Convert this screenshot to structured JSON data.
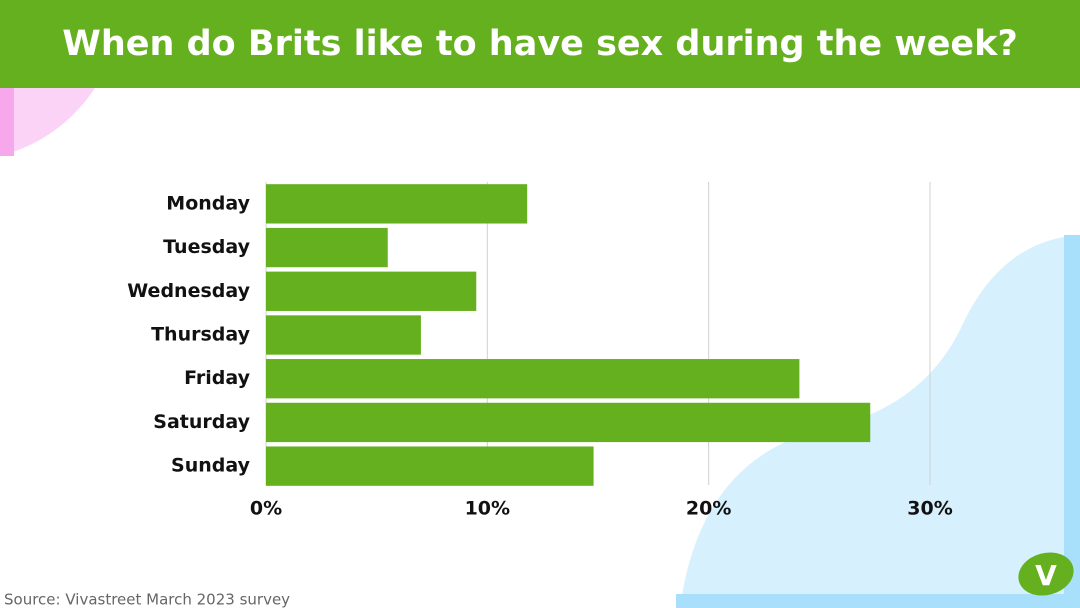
{
  "chart_data": {
    "type": "bar",
    "orientation": "horizontal",
    "title": "When do Brits like to have sex during the week?",
    "categories": [
      "Monday",
      "Tuesday",
      "Wednesday",
      "Thursday",
      "Friday",
      "Saturday",
      "Sunday"
    ],
    "values": [
      11.8,
      5.5,
      9.5,
      7.0,
      24.1,
      27.3,
      14.8
    ],
    "color": "#65b01e",
    "xlim": [
      0,
      30
    ],
    "xticks": [
      {
        "value": 0,
        "label": "0%"
      },
      {
        "value": 10,
        "label": "10%"
      },
      {
        "value": 20,
        "label": "20%"
      },
      {
        "value": 30,
        "label": "30%"
      }
    ],
    "grid": true
  },
  "source": "Source: Vivastreet March 2023 survey",
  "logo": "V"
}
